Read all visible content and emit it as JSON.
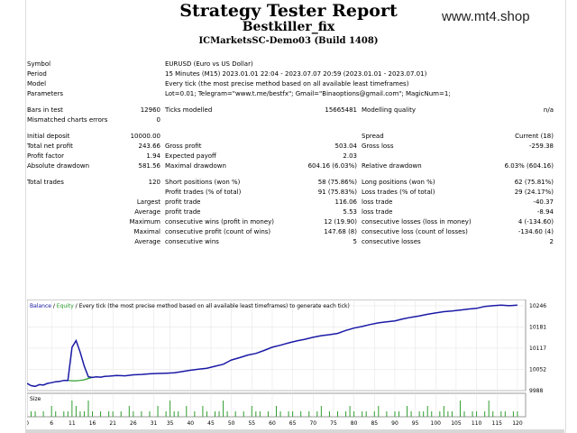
{
  "header": {
    "title": "Strategy Tester Report",
    "subtitle": "Bestkiller_fix",
    "server": "ICMarketsSC-Demo03 (Build 1408)",
    "watermark": "www.mt4.shop"
  },
  "settings": {
    "symbol_label": "Symbol",
    "symbol_value": "EURUSD (Euro vs US Dollar)",
    "period_label": "Period",
    "period_value": "15 Minutes (M15) 2023.01.01 22:04 - 2023.07.07 20:59 (2023.01.01 - 2023.07.01)",
    "model_label": "Model",
    "model_value": "Every tick (the most precise method based on all available least timeframes)",
    "parameters_label": "Parameters",
    "parameters_value": "Lot=0.01; Telegram=\"www.t.me/bestfx\"; Gmail=\"Binaoptions@gmail.com\"; MagicNum=1;"
  },
  "stats": {
    "bars_label": "Bars in test",
    "bars_value": "12960",
    "ticks_label": "Ticks modelled",
    "ticks_value": "15665481",
    "quality_label": "Modelling quality",
    "quality_value": "n/a",
    "mismatch_label": "Mismatched charts errors",
    "mismatch_value": "0",
    "deposit_label": "Initial deposit",
    "deposit_value": "10000.00",
    "spread_label": "Spread",
    "spread_value": "Current (18)",
    "net_label": "Total net profit",
    "net_value": "243.66",
    "gross_profit_label": "Gross profit",
    "gross_profit_value": "503.04",
    "gross_loss_label": "Gross loss",
    "gross_loss_value": "-259.38",
    "pf_label": "Profit factor",
    "pf_value": "1.94",
    "payoff_label": "Expected payoff",
    "payoff_value": "2.03",
    "abs_dd_label": "Absolute drawdown",
    "abs_dd_value": "581.56",
    "max_dd_label": "Maximal drawdown",
    "max_dd_value": "604.16 (6.03%)",
    "rel_dd_label": "Relative drawdown",
    "rel_dd_value": "6.03% (604.16)",
    "trades_label": "Total trades",
    "trades_value": "120",
    "short_label": "Short positions (won %)",
    "short_value": "58 (75.86%)",
    "long_label": "Long positions (won %)",
    "long_value": "62 (75.81%)",
    "pt_label": "Profit trades (% of total)",
    "pt_value": "91 (75.83%)",
    "lt_label": "Loss trades (% of total)",
    "lt_value": "29 (24.17%)",
    "largest_label": "Largest",
    "largest_pt_label": "profit trade",
    "largest_pt_value": "116.06",
    "largest_lt_label": "loss trade",
    "largest_lt_value": "-40.37",
    "average_label": "Average",
    "avg_pt_label": "profit trade",
    "avg_pt_value": "5.53",
    "avg_lt_label": "loss trade",
    "avg_lt_value": "-8.94",
    "maximum_label": "Maximum",
    "max_wins_label": "consecutive wins (profit in money)",
    "max_wins_value": "12 (19.90)",
    "max_losses_label": "consecutive losses (loss in money)",
    "max_losses_value": "4 (-134.60)",
    "maximal_label": "Maximal",
    "maximal_profit_label": "consecutive profit (count of wins)",
    "maximal_profit_value": "147.68 (8)",
    "maximal_loss_label": "consecutive loss (count of losses)",
    "maximal_loss_value": "-134.60 (4)",
    "average2_label": "Average",
    "avg_wins_label": "consecutive wins",
    "avg_wins_value": "5",
    "avg_losses_label": "consecutive losses",
    "avg_losses_value": "2"
  },
  "chart_data": {
    "type": "line",
    "legend": {
      "balance": "Balance",
      "separator": " / ",
      "equity": "Equity",
      "description": " / Every tick (the most precise method based on all available least timeframes) to generate each tick)"
    },
    "x_ticks": [
      "0",
      "6",
      "11",
      "16",
      "21",
      "26",
      "31",
      "35",
      "40",
      "45",
      "50",
      "55",
      "60",
      "65",
      "70",
      "75",
      "80",
      "85",
      "90",
      "95",
      "100",
      "105",
      "110",
      "115",
      "120"
    ],
    "x_tick_positions": [
      0,
      6,
      11,
      16,
      21,
      26,
      31,
      35,
      40,
      45,
      50,
      55,
      60,
      65,
      70,
      75,
      80,
      85,
      90,
      95,
      100,
      105,
      110,
      115,
      120
    ],
    "y_ticks": [
      "10246",
      "10181",
      "10117",
      "10052",
      "9988"
    ],
    "y_tick_values": [
      10246,
      10181,
      10117,
      10052,
      9988
    ],
    "xlim": [
      0,
      122
    ],
    "ylim": [
      9988,
      10265
    ],
    "size_label": "Size",
    "colors": {
      "balance": "#1a1aa6",
      "equity": "#2e9e2e",
      "volume": "#2e9e2e",
      "grid": "#e2e2e2"
    },
    "series": [
      {
        "name": "Balance",
        "x": [
          0,
          1,
          2,
          3,
          4,
          5,
          6,
          7,
          8,
          9,
          10,
          11,
          12,
          13,
          14,
          15,
          16,
          17,
          18,
          19,
          20,
          22,
          24,
          26,
          28,
          30,
          32,
          34,
          36,
          38,
          40,
          42,
          44,
          46,
          48,
          50,
          52,
          54,
          56,
          58,
          60,
          62,
          64,
          66,
          68,
          70,
          72,
          74,
          76,
          78,
          80,
          82,
          84,
          86,
          88,
          90,
          92,
          94,
          96,
          98,
          100,
          102,
          104,
          106,
          108,
          110,
          112,
          114,
          116,
          118,
          120
        ],
        "y": [
          10010,
          10003,
          10001,
          10006,
          10005,
          10010,
          10012,
          10015,
          10016,
          10019,
          10019,
          10120,
          10140,
          10105,
          10062,
          10030,
          10028,
          10030,
          10029,
          10031,
          10032,
          10034,
          10033,
          10036,
          10037,
          10039,
          10040,
          10041,
          10042,
          10046,
          10050,
          10053,
          10056,
          10062,
          10068,
          10081,
          10088,
          10096,
          10101,
          10110,
          10120,
          10126,
          10133,
          10139,
          10144,
          10150,
          10155,
          10158,
          10162,
          10171,
          10178,
          10183,
          10189,
          10194,
          10197,
          10200,
          10206,
          10211,
          10215,
          10220,
          10224,
          10228,
          10230,
          10233,
          10236,
          10238,
          10244,
          10246,
          10248,
          10246,
          10248
        ]
      },
      {
        "name": "Equity",
        "x": [
          9,
          10,
          11,
          12,
          13,
          14,
          15,
          16
        ],
        "y": [
          10019,
          10019,
          10018,
          10018,
          10019,
          10021,
          10025,
          10028
        ]
      }
    ],
    "volume": [
      0,
      1,
      1,
      0,
      1,
      0,
      2,
      1,
      0,
      1,
      1,
      3,
      2,
      1,
      1,
      3,
      1,
      0,
      1,
      0,
      1,
      1,
      0,
      1,
      0,
      2,
      1,
      0,
      1,
      0,
      1,
      0,
      2,
      0,
      1,
      3,
      1,
      1,
      0,
      2,
      0,
      1,
      0,
      2,
      1,
      0,
      1,
      1,
      3,
      1,
      0,
      1,
      0,
      1,
      0,
      2,
      1,
      1,
      0,
      1,
      0,
      2,
      1,
      0,
      1,
      1,
      0,
      1,
      0,
      1,
      0,
      1,
      2,
      0,
      1,
      0,
      1,
      0,
      1,
      2,
      1,
      0,
      1,
      1,
      0,
      1,
      2,
      0,
      1,
      0,
      1,
      1,
      0,
      2,
      1,
      0,
      1,
      1,
      2,
      1,
      0,
      1,
      2,
      1,
      1,
      0,
      3,
      1,
      0,
      1,
      1,
      0,
      1,
      3,
      1,
      0,
      1,
      1,
      0,
      1,
      1
    ]
  }
}
